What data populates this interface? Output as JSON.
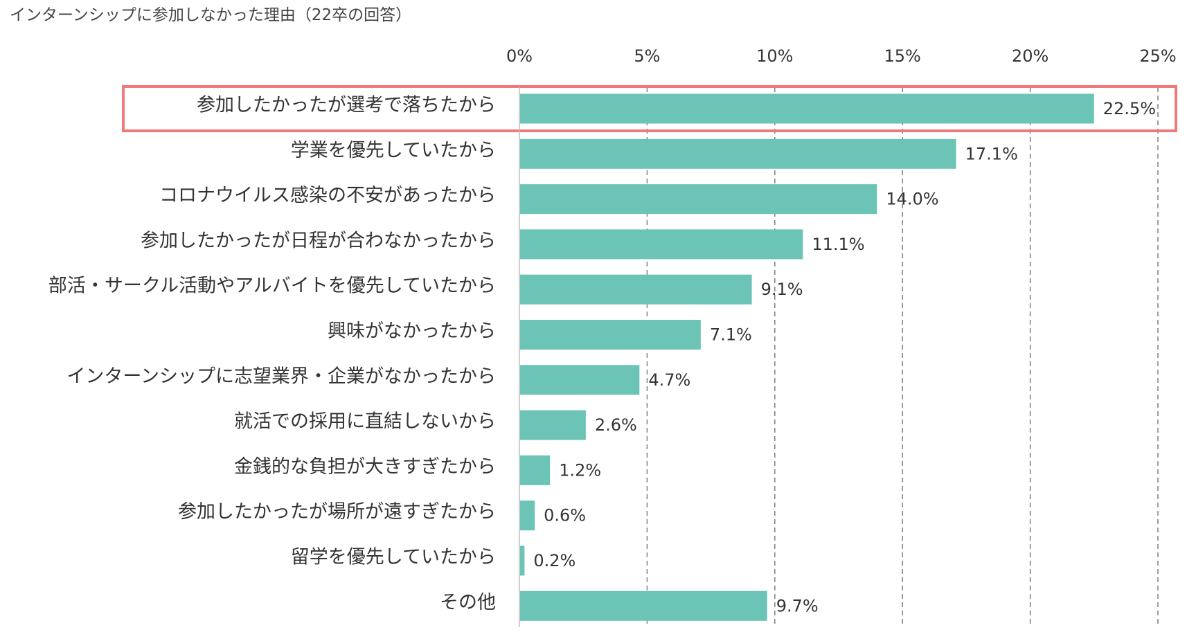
{
  "chart_data": {
    "type": "bar",
    "orientation": "horizontal",
    "title": "インターンシップに参加しなかった理由（22卒の回答）",
    "xlabel": "",
    "ylabel": "",
    "xlim": [
      0,
      25
    ],
    "x_ticks": [
      "0%",
      "5%",
      "10%",
      "15%",
      "20%",
      "25%"
    ],
    "tick_values": [
      0,
      5,
      10,
      15,
      20,
      25
    ],
    "grid": "vertical dashed",
    "bar_color": "#6bc4b6",
    "highlight_color": "#f07a7a",
    "highlight_index": 0,
    "categories": [
      "参加したかったが選考で落ちたから",
      "学業を優先していたから",
      "コロナウイルス感染の不安があったから",
      "参加したかったが日程が合わなかったから",
      "部活・サークル活動やアルバイトを優先していたから",
      "興味がなかったから",
      "インターンシップに志望業界・企業がなかったから",
      "就活での採用に直結しないから",
      "金銭的な負担が大きすぎたから",
      "参加したかったが場所が遠すぎたから",
      "留学を優先していたから",
      "その他"
    ],
    "values": [
      22.5,
      17.1,
      14.0,
      11.1,
      9.1,
      7.1,
      4.7,
      2.6,
      1.2,
      0.6,
      0.2,
      9.7
    ],
    "value_labels": [
      "22.5%",
      "17.1%",
      "14.0%",
      "11.1%",
      "9.1%",
      "7.1%",
      "4.7%",
      "2.6%",
      "1.2%",
      "0.6%",
      "0.2%",
      "9.7%"
    ]
  }
}
